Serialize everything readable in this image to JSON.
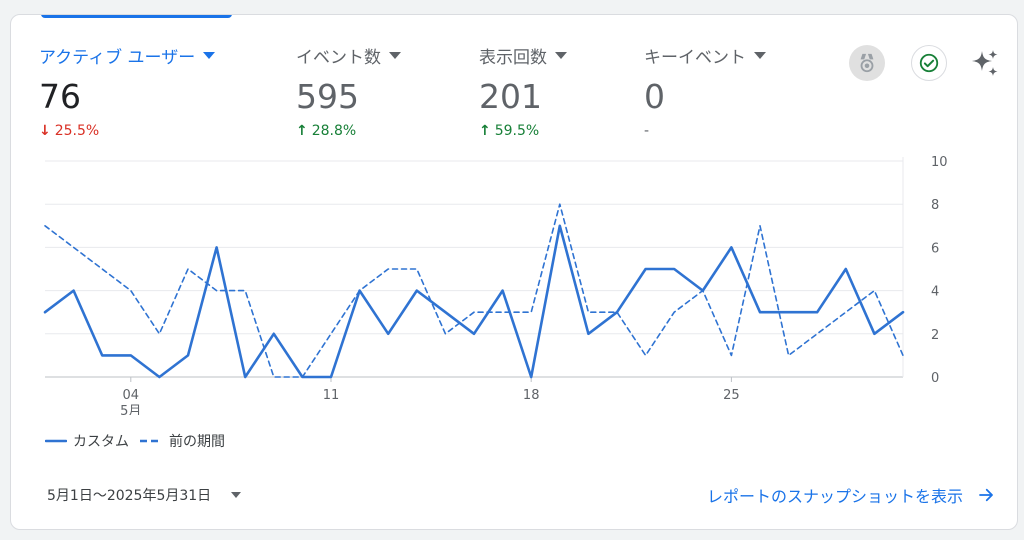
{
  "metrics": [
    {
      "label": "アクティブ ユーザー",
      "value": "76",
      "change": "25.5%",
      "direction": "down",
      "active": true
    },
    {
      "label": "イベント数",
      "value": "595",
      "change": "28.8%",
      "direction": "up",
      "active": false
    },
    {
      "label": "表示回数",
      "value": "201",
      "change": "59.5%",
      "direction": "up",
      "active": false
    },
    {
      "label": "キーイベント",
      "value": "0",
      "change": "-",
      "direction": "none",
      "active": false
    }
  ],
  "icons": {
    "insights_badge": "medal-icon",
    "status": "check-circle-icon",
    "ai": "sparkle-icon",
    "arrow_down": "↓",
    "arrow_up": "↑"
  },
  "colors": {
    "accent": "#1a73e8",
    "series": "#2f73d2",
    "down": "#d93025",
    "up": "#188038",
    "check": "#188038"
  },
  "chart_data": {
    "type": "line",
    "x": [
      "5/1",
      "5/2",
      "5/3",
      "5/4",
      "5/5",
      "5/6",
      "5/7",
      "5/8",
      "5/9",
      "5/10",
      "5/11",
      "5/12",
      "5/13",
      "5/14",
      "5/15",
      "5/16",
      "5/17",
      "5/18",
      "5/19",
      "5/20",
      "5/21",
      "5/22",
      "5/23",
      "5/24",
      "5/25",
      "5/26",
      "5/27",
      "5/28",
      "5/29",
      "5/30",
      "5/31"
    ],
    "x_tick_labels": [
      {
        "index": 3,
        "label": "04",
        "sub": "5月"
      },
      {
        "index": 10,
        "label": "11",
        "sub": ""
      },
      {
        "index": 17,
        "label": "18",
        "sub": ""
      },
      {
        "index": 24,
        "label": "25",
        "sub": ""
      }
    ],
    "series": [
      {
        "name": "カスタム",
        "style": "solid",
        "values": [
          3,
          4,
          1,
          1,
          0,
          1,
          6,
          0,
          2,
          0,
          0,
          4,
          2,
          4,
          3,
          2,
          4,
          0,
          7,
          2,
          3,
          5,
          5,
          4,
          6,
          3,
          3,
          3,
          5,
          2,
          3
        ]
      },
      {
        "name": "前の期間",
        "style": "dashed",
        "values": [
          7,
          6,
          5,
          4,
          2,
          5,
          4,
          4,
          0,
          0,
          2,
          4,
          5,
          5,
          2,
          3,
          3,
          3,
          8,
          3,
          3,
          1,
          3,
          4,
          1,
          7,
          1,
          2,
          3,
          4,
          1
        ]
      }
    ],
    "ylim": [
      0,
      10
    ],
    "y_ticks": [
      0,
      2,
      4,
      6,
      8,
      10
    ],
    "grid": true,
    "legend_position": "bottom-left"
  },
  "footer": {
    "date_range": "5月1日～2025年5月31日",
    "report_link": "レポートのスナップショットを表示"
  }
}
